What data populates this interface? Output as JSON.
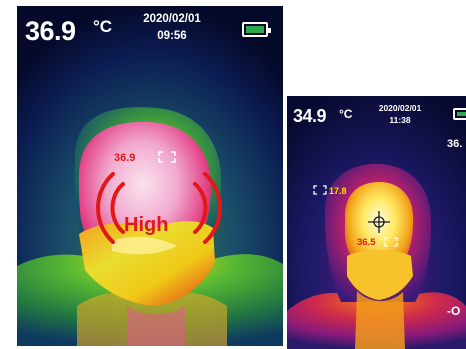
{
  "left_screen": {
    "temperature": "36.9",
    "unit": "°C",
    "date": "2020/02/01",
    "time": "09:56",
    "battery_color": "#2ea84a",
    "spot_temperature": "36.9",
    "alarm_label": "High",
    "alarm_color": "#e01818"
  },
  "right_screen": {
    "temperature": "34.9",
    "unit": "°C",
    "date": "2020/02/01",
    "time": "11:38",
    "max_temperature": "36.",
    "min_temperature": "17.8",
    "center_temperature": "36.5",
    "edge_label": "-O",
    "battery_color": "#2ea84a"
  }
}
